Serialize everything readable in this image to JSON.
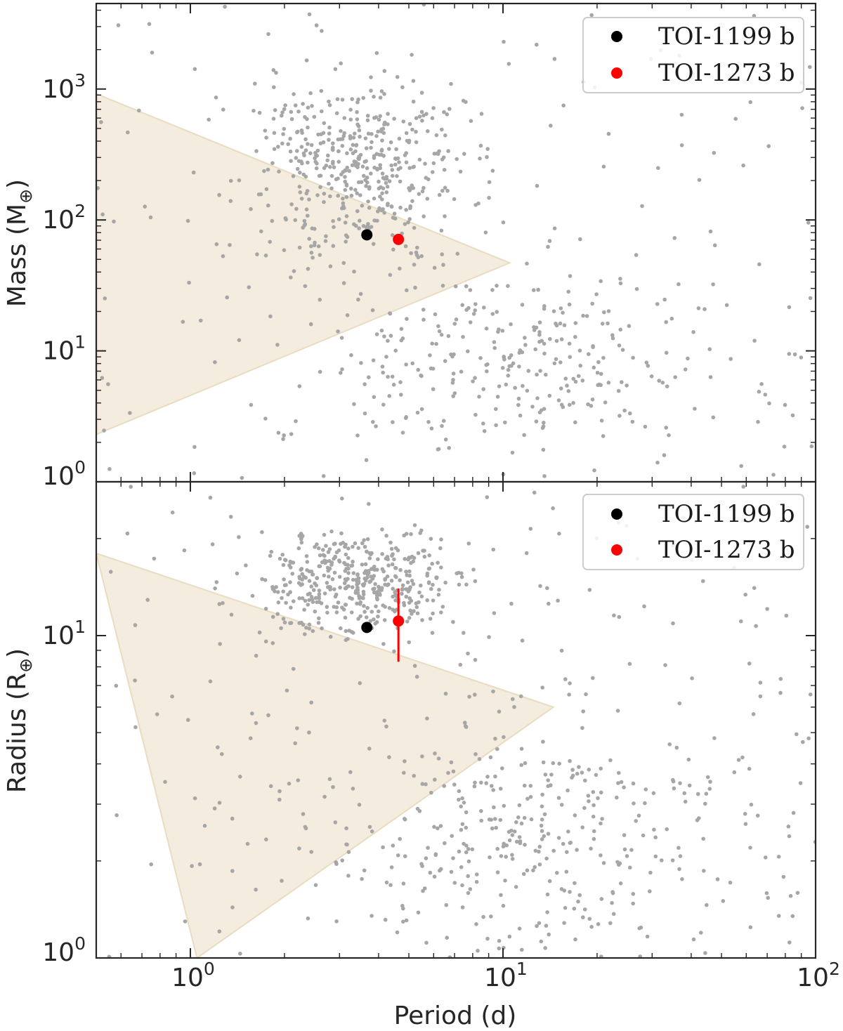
{
  "chart_data": [
    {
      "type": "scatter",
      "panel": "top",
      "ylabel": "Mass (M",
      "ylabel_symbol": "⊕",
      "xlabel": "",
      "xscale": "log",
      "yscale": "log",
      "xlim": [
        0.5,
        100
      ],
      "ylim": [
        1,
        4500
      ],
      "yticks": [
        {
          "value": 1,
          "base": "10",
          "exp": "0"
        },
        {
          "value": 10,
          "base": "10",
          "exp": "1"
        },
        {
          "value": 100,
          "base": "10",
          "exp": "2"
        },
        {
          "value": 1000,
          "base": "10",
          "exp": "3"
        }
      ],
      "shaded_region": {
        "color": "#f3ecdf",
        "edge_color": "#eadcc0",
        "vertices": [
          [
            0.5,
            920
          ],
          [
            10.5,
            47
          ],
          [
            0.5,
            2.3
          ]
        ]
      },
      "background_color": "#a6a6a6",
      "background_count": 900,
      "highlight": [
        {
          "name": "TOI-1199 b",
          "color": "#000000",
          "x": 3.67,
          "y": 77
        },
        {
          "name": "TOI-1273 b",
          "color": "#ff0000",
          "x": 4.63,
          "y": 71
        }
      ],
      "legend_position": "upper right"
    },
    {
      "type": "scatter",
      "panel": "bottom",
      "ylabel": "Radius (R",
      "ylabel_symbol": "⊕",
      "xlabel": "Period (d)",
      "xscale": "log",
      "yscale": "log",
      "xlim": [
        0.5,
        100
      ],
      "ylim": [
        1,
        30
      ],
      "xticks": [
        {
          "value": 1,
          "base": "10",
          "exp": "0"
        },
        {
          "value": 10,
          "base": "10",
          "exp": "1"
        },
        {
          "value": 100,
          "base": "10",
          "exp": "2"
        }
      ],
      "yticks": [
        {
          "value": 1,
          "base": "10",
          "exp": "0"
        },
        {
          "value": 10,
          "base": "10",
          "exp": "1"
        }
      ],
      "shaded_region": {
        "color": "#f3ecdf",
        "edge_color": "#eadcc0",
        "vertices": [
          [
            0.5,
            18
          ],
          [
            14.5,
            6
          ],
          [
            1.05,
            1
          ]
        ]
      },
      "background_color": "#a6a6a6",
      "background_count": 1000,
      "highlight": [
        {
          "name": "TOI-1199 b",
          "color": "#000000",
          "x": 3.67,
          "y": 10.6
        },
        {
          "name": "TOI-1273 b",
          "color": "#ff0000",
          "x": 4.63,
          "y": 11.1,
          "y_err_low": 2.8,
          "y_err_high": 2.9
        }
      ],
      "legend_position": "upper right"
    }
  ]
}
